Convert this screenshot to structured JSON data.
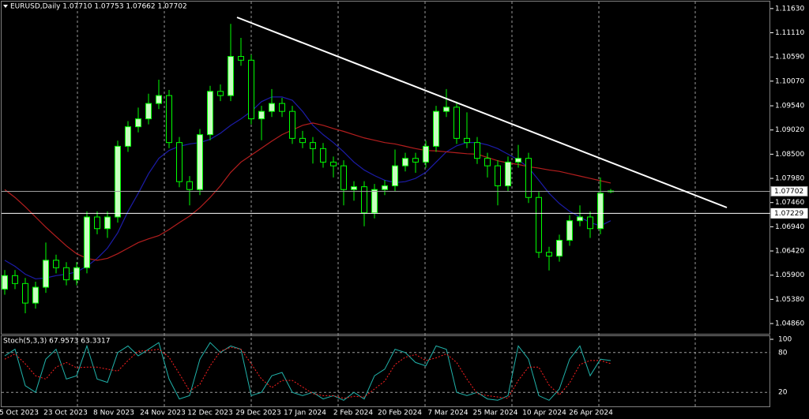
{
  "chart_data": [
    {
      "type": "candlestick",
      "title": "EURUSD,Daily 1.07710 1.07753 1.07662 1.07702",
      "color": "#00ff00",
      "open": [
        1.056,
        1.0589,
        1.0572,
        1.053,
        1.0564,
        1.0622,
        1.0606,
        1.058,
        1.0606,
        1.0715,
        1.069,
        1.0715,
        1.0867,
        1.0909,
        1.0926,
        1.0959,
        1.0976,
        1.0875,
        1.0791,
        1.0774,
        1.0892,
        1.0985,
        1.0976,
        1.106,
        1.1052,
        1.0926,
        1.0942,
        1.0959,
        1.0942,
        1.0884,
        1.0875,
        1.0862,
        1.0833,
        1.0825,
        1.0774,
        1.078,
        1.0724,
        1.0774,
        1.0782,
        1.0825,
        1.0841,
        1.0833,
        1.0867,
        1.0942,
        1.0951,
        1.0884,
        1.0875,
        1.0841,
        1.0825,
        1.0782,
        1.0833,
        1.0841,
        1.0757,
        1.0639,
        1.0631,
        1.0665,
        1.0707,
        1.0715,
        1.069,
        1.0771
      ],
      "high": [
        1.0601,
        1.0601,
        1.0584,
        1.0576,
        1.066,
        1.0634,
        1.0618,
        1.0618,
        1.0727,
        1.0727,
        1.0727,
        1.0879,
        1.0921,
        1.095,
        1.098,
        1.101,
        1.0988,
        1.0887,
        1.0803,
        1.0904,
        1.0997,
        1.1,
        1.113,
        1.11,
        1.1064,
        1.0954,
        1.099,
        1.0971,
        1.0954,
        1.09,
        1.0887,
        1.0874,
        1.0845,
        1.0837,
        1.0792,
        1.0792,
        1.0786,
        1.0794,
        1.086,
        1.0853,
        1.0853,
        1.0879,
        1.0954,
        1.099,
        1.0963,
        1.094,
        1.0887,
        1.0853,
        1.0837,
        1.0845,
        1.087,
        1.0853,
        1.0769,
        1.0651,
        1.0677,
        1.0719,
        1.074,
        1.0727,
        1.08,
        1.07753
      ],
      "low": [
        1.0548,
        1.056,
        1.0508,
        1.0518,
        1.0552,
        1.0594,
        1.0568,
        1.0568,
        1.0594,
        1.0678,
        1.067,
        1.0703,
        1.0855,
        1.0897,
        1.0914,
        1.0947,
        1.0863,
        1.0779,
        1.074,
        1.0762,
        1.088,
        1.0964,
        1.0964,
        1.104,
        1.0914,
        1.088,
        1.093,
        1.093,
        1.0872,
        1.0863,
        1.083,
        1.0821,
        1.08,
        1.074,
        1.075,
        1.0695,
        1.0712,
        1.0762,
        1.077,
        1.0813,
        1.081,
        1.0821,
        1.0855,
        1.093,
        1.0872,
        1.0863,
        1.0829,
        1.08,
        1.074,
        1.077,
        1.0821,
        1.0745,
        1.0627,
        1.06,
        1.0619,
        1.0653,
        1.0695,
        1.067,
        1.0678,
        1.07662
      ],
      "close": [
        1.0589,
        1.0572,
        1.053,
        1.0564,
        1.0622,
        1.0606,
        1.058,
        1.0606,
        1.0715,
        1.069,
        1.0715,
        1.0867,
        1.0909,
        1.0926,
        1.0959,
        1.0976,
        1.0875,
        1.0791,
        1.0774,
        1.0892,
        1.0985,
        1.0976,
        1.106,
        1.1052,
        1.0926,
        1.0942,
        1.0959,
        1.0942,
        1.0884,
        1.0875,
        1.0862,
        1.0833,
        1.0825,
        1.0774,
        1.078,
        1.0724,
        1.0774,
        1.0782,
        1.0825,
        1.0841,
        1.0833,
        1.0867,
        1.0942,
        1.0951,
        1.0884,
        1.0875,
        1.0841,
        1.0825,
        1.0782,
        1.0833,
        1.0841,
        1.0757,
        1.0639,
        1.0631,
        1.0665,
        1.0707,
        1.0715,
        1.069,
        1.0766,
        1.07702
      ],
      "moving_averages": [
        {
          "color": "#1c1ca8",
          "values": [
            1.0622,
            1.0609,
            1.0592,
            1.0582,
            1.0584,
            1.0589,
            1.0592,
            1.0597,
            1.0609,
            1.0626,
            1.0648,
            1.0681,
            1.0727,
            1.0766,
            1.0808,
            1.0841,
            1.0858,
            1.0867,
            1.0872,
            1.0875,
            1.0882,
            1.0895,
            1.0912,
            1.0926,
            1.0942,
            1.0963,
            1.0973,
            1.0973,
            1.0966,
            1.0942,
            1.0912,
            1.0892,
            1.0875,
            1.0855,
            1.0833,
            1.0816,
            1.0804,
            1.0794,
            1.0789,
            1.0791,
            1.0798,
            1.0811,
            1.0833,
            1.0855,
            1.0868,
            1.0875,
            1.0875,
            1.087,
            1.0862,
            1.085,
            1.0838,
            1.0821,
            1.0794,
            1.0766,
            1.0744,
            1.0727,
            1.0715,
            1.0703,
            1.0696,
            1.0707
          ]
        },
        {
          "color": "#b41e1e",
          "values": [
            1.0774,
            1.0757,
            1.0737,
            1.0715,
            1.0693,
            1.0673,
            1.0653,
            1.0636,
            1.0626,
            1.0622,
            1.0626,
            1.0636,
            1.0648,
            1.066,
            1.0668,
            1.0675,
            1.0688,
            1.0703,
            1.0717,
            1.0735,
            1.0757,
            1.0782,
            1.0811,
            1.0833,
            1.0848,
            1.0863,
            1.0878,
            1.0892,
            1.0902,
            1.0912,
            1.0917,
            1.0912,
            1.0905,
            1.0899,
            1.0892,
            1.0885,
            1.088,
            1.0875,
            1.0872,
            1.0867,
            1.0862,
            1.0858,
            1.0857,
            1.0855,
            1.0853,
            1.0851,
            1.085,
            1.0843,
            1.0836,
            1.0831,
            1.0828,
            1.0823,
            1.082,
            1.0816,
            1.0813,
            1.0808,
            1.0803,
            1.0798,
            1.0793,
            1.0788
          ]
        }
      ],
      "price_lines": [
        1.07702,
        1.07229
      ],
      "price_line_colors": [
        "#a0a0a0",
        "#ffffff"
      ],
      "ylim": [
        1.0464,
        1.1178
      ],
      "yticks": [
        {
          "value": 1.1163,
          "label": "1.11630"
        },
        {
          "value": 1.1111,
          "label": "1.11110"
        },
        {
          "value": 1.1059,
          "label": "1.10590"
        },
        {
          "value": 1.1007,
          "label": "1.10070"
        },
        {
          "value": 1.0954,
          "label": "1.09540"
        },
        {
          "value": 1.0902,
          "label": "1.09020"
        },
        {
          "value": 1.085,
          "label": "1.08500"
        },
        {
          "value": 1.0798,
          "label": "1.07980"
        },
        {
          "value": 1.0746,
          "label": "1.07460"
        },
        {
          "value": 1.0694,
          "label": "1.06940"
        },
        {
          "value": 1.0642,
          "label": "1.06420"
        },
        {
          "value": 1.059,
          "label": "1.05900"
        },
        {
          "value": 1.0538,
          "label": "1.05380"
        },
        {
          "value": 1.0486,
          "label": "1.04860"
        }
      ],
      "x_labels": [
        "5 Oct 2023",
        "23 Oct 2023",
        "8 Nov 2023",
        "24 Nov 2023",
        "12 Dec 2023",
        "29 Dec 2023",
        "17 Jan 2024",
        "2 Feb 2024",
        "20 Feb 2024",
        "7 Mar 2024",
        "25 Mar 2024",
        "10 Apr 2024",
        "26 Apr 2024"
      ]
    },
    {
      "type": "line",
      "title": "Stoch(5,3,3) 67.9573 63.3317",
      "ylim": [
        0,
        100
      ],
      "yticks": [
        100,
        80,
        20
      ],
      "grid": true,
      "series": [
        {
          "color": "#20b2aa",
          "values": [
            75,
            85,
            30,
            20,
            70,
            85,
            40,
            45,
            90,
            40,
            35,
            80,
            90,
            75,
            85,
            95,
            40,
            10,
            15,
            70,
            95,
            80,
            90,
            85,
            15,
            20,
            45,
            50,
            20,
            15,
            20,
            10,
            15,
            8,
            20,
            10,
            45,
            55,
            85,
            80,
            65,
            60,
            90,
            85,
            20,
            15,
            20,
            10,
            8,
            15,
            90,
            70,
            15,
            8,
            25,
            70,
            90,
            45,
            70,
            67.9573
          ]
        },
        {
          "color": "#ff2020",
          "dashed": true,
          "values": [
            70,
            78,
            63,
            45,
            40,
            58,
            65,
            57,
            58,
            58,
            55,
            52,
            68,
            82,
            83,
            85,
            73,
            48,
            22,
            32,
            60,
            82,
            88,
            85,
            63,
            40,
            27,
            38,
            38,
            28,
            18,
            15,
            15,
            11,
            14,
            13,
            25,
            37,
            62,
            73,
            77,
            68,
            72,
            78,
            65,
            40,
            18,
            15,
            13,
            11,
            38,
            58,
            58,
            31,
            16,
            34,
            62,
            68,
            68,
            63.3317
          ]
        }
      ]
    }
  ]
}
